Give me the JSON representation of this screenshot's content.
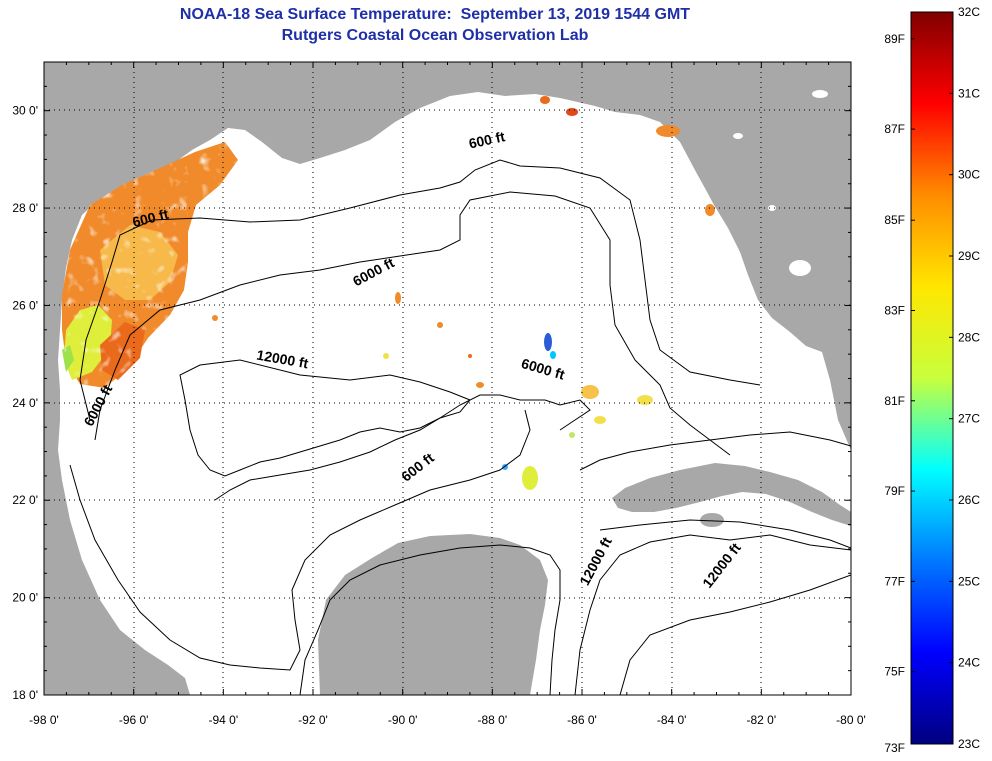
{
  "title": {
    "line1": "NOAA-18 Sea Surface Temperature:  September 13, 2019 1544 GMT",
    "line2": "Rutgers Coastal Ocean Observation Lab"
  },
  "colors": {
    "title": "#1f2fa8",
    "land": "#a8a8a8",
    "ocean": "#ffffff",
    "cloud_mask": "#ffffff",
    "contour": "#000000",
    "grid": "#000000"
  },
  "map": {
    "lon_range": [
      -98,
      -80
    ],
    "lat_range": [
      18,
      31
    ],
    "lon_labels": [
      "-98 0'",
      "-96 0'",
      "-94 0'",
      "-92 0'",
      "-90 0'",
      "-88 0'",
      "-86 0'",
      "-84 0'",
      "-82 0'",
      "-80 0'"
    ],
    "lat_labels": [
      "18 0'",
      "20 0'",
      "22 0'",
      "24 0'",
      "26 0'",
      "28 0'",
      "30 0'"
    ],
    "gridlines": "dotted",
    "isobath_labels": [
      {
        "text": "600 ft",
        "lon": -95.6,
        "lat": 27.7
      },
      {
        "text": "6000 ft",
        "lon": -90.6,
        "lat": 26.6
      },
      {
        "text": "600 ft",
        "lon": -88.1,
        "lat": 29.3
      },
      {
        "text": "12000 ft",
        "lon": -92.7,
        "lat": 24.8
      },
      {
        "text": "6000 ft",
        "lon": -86.9,
        "lat": 24.6
      },
      {
        "text": "6000 ft",
        "lon": -96.7,
        "lat": 23.9
      },
      {
        "text": "600 ft",
        "lon": -89.6,
        "lat": 22.6
      },
      {
        "text": "12000 ft",
        "lon": -85.6,
        "lat": 20.7
      },
      {
        "text": "12000 ft",
        "lon": -82.8,
        "lat": 20.6
      }
    ]
  },
  "colorbar": {
    "min_c": 23,
    "max_c": 32,
    "celsius_labels": [
      "32C",
      "31C",
      "30C",
      "29C",
      "28C",
      "27C",
      "26C",
      "25C",
      "24C",
      "23C"
    ],
    "fahrenheit_labels": [
      {
        "text": "89F",
        "c": 31.67
      },
      {
        "text": "87F",
        "c": 30.56
      },
      {
        "text": "85F",
        "c": 29.44
      },
      {
        "text": "83F",
        "c": 28.33
      },
      {
        "text": "81F",
        "c": 27.22
      },
      {
        "text": "79F",
        "c": 26.11
      },
      {
        "text": "77F",
        "c": 25.0
      },
      {
        "text": "75F",
        "c": 23.89
      },
      {
        "text": "73F",
        "c": 22.78
      }
    ],
    "stops": [
      "#800000",
      "#ff0000",
      "#ff8c00",
      "#ffe600",
      "#c8ff3c",
      "#00ffff",
      "#0078ff",
      "#0000ff",
      "#000080"
    ]
  }
}
